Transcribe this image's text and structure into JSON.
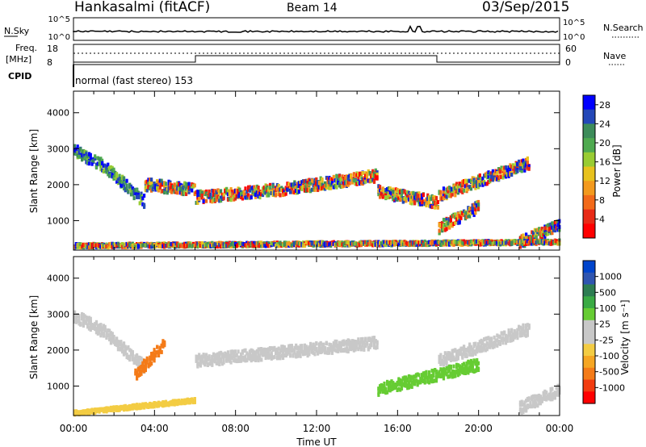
{
  "header": {
    "station": "Hankasalmi (fitACF)",
    "beam": "Beam 14",
    "date": "03/Sep/2015"
  },
  "noise_panel": {
    "left_label": "N.Sky",
    "left_ticks": [
      "10^5",
      "10^0"
    ],
    "right_label": "N.Search",
    "right_ticks": [
      "10^5",
      "10^0"
    ]
  },
  "freq_panel": {
    "left_label_line1": "Freq.",
    "left_label_line2": "[MHz]",
    "left_ticks": [
      "18",
      "8"
    ],
    "right_label": "Nave",
    "right_ticks": [
      "60",
      "0"
    ]
  },
  "cpid_panel": {
    "label": "CPID",
    "mode_text": "normal (fast stereo) 153"
  },
  "colors": {
    "power_scale": [
      "#0000ff",
      "#2448b8",
      "#3d8c5a",
      "#4faa50",
      "#99cc33",
      "#e8c21e",
      "#f39a1e",
      "#f26a1a",
      "#e82a16",
      "#ff0000"
    ],
    "velocity_scale": [
      "#ff0000",
      "#f23c10",
      "#f47b18",
      "#f5a623",
      "#f3cc43",
      "#c8c8c8",
      "#c8c8c8",
      "#66cc33",
      "#3aaa44",
      "#2d7d52",
      "#2f55b0",
      "#0044cc"
    ],
    "ground_scatter": "#c8c8c8"
  },
  "chart_data": [
    {
      "type": "heatmap",
      "name": "power",
      "xlabel": "",
      "ylabel": "Slant Range [km]",
      "xlim_hours": [
        0,
        24
      ],
      "ylim_km": [
        180,
        4600
      ],
      "y_ticks": [
        "1000",
        "2000",
        "3000",
        "4000"
      ],
      "colorbar": {
        "label": "Power [dB]",
        "range": [
          0,
          30
        ],
        "ticks": [
          "4",
          "8",
          "12",
          "16",
          "20",
          "24",
          "28"
        ]
      },
      "scatter_bands": [
        {
          "t_start": 0.0,
          "t_end": 1.5,
          "range_start": 2950,
          "range_end": 2500
        },
        {
          "t_start": 1.5,
          "t_end": 3.5,
          "range_start": 2500,
          "range_end": 1500
        },
        {
          "t_start": 3.5,
          "t_end": 6.0,
          "range_start": 2000,
          "range_end": 1850
        },
        {
          "t_start": 6.0,
          "t_end": 10.0,
          "range_start": 1650,
          "range_end": 1850
        },
        {
          "t_start": 10.0,
          "t_end": 15.0,
          "range_start": 1850,
          "range_end": 2250
        },
        {
          "t_start": 15.0,
          "t_end": 18.0,
          "range_start": 1800,
          "range_end": 1500
        },
        {
          "t_start": 18.0,
          "t_end": 22.5,
          "range_start": 1700,
          "range_end": 2600
        },
        {
          "t_start": 18.0,
          "t_end": 20.0,
          "range_start": 800,
          "range_end": 1400
        },
        {
          "t_start": 22.0,
          "t_end": 24.0,
          "range_start": 400,
          "range_end": 900
        },
        {
          "t_start": 0.0,
          "t_end": 24.0,
          "range_start": 300,
          "range_end": 400
        }
      ]
    },
    {
      "type": "heatmap",
      "name": "velocity",
      "xlabel": "Time UT",
      "ylabel": "Slant Range [km]",
      "xlim_hours": [
        0,
        24
      ],
      "x_ticks": [
        "00:00",
        "04:00",
        "08:00",
        "12:00",
        "16:00",
        "20:00",
        "00:00"
      ],
      "ylim_km": [
        180,
        4600
      ],
      "y_ticks": [
        "1000",
        "2000",
        "3000",
        "4000"
      ],
      "colorbar": {
        "label": "Velocity [m s⁻¹]",
        "ticks": [
          "1000",
          "500",
          "100",
          "25",
          "-25",
          "-100",
          "-500",
          "-1000"
        ]
      },
      "scatter_bands": [
        {
          "t_start": 0.0,
          "t_end": 1.5,
          "range_start": 2950,
          "range_end": 2500,
          "class": "ground"
        },
        {
          "t_start": 1.5,
          "t_end": 3.5,
          "range_start": 2500,
          "range_end": 1500,
          "class": "ground"
        },
        {
          "t_start": 3.0,
          "t_end": 4.5,
          "range_start": 1300,
          "range_end": 2200,
          "class": "away_-500"
        },
        {
          "t_start": 6.0,
          "t_end": 15.0,
          "range_start": 1700,
          "range_end": 2200,
          "class": "ground"
        },
        {
          "t_start": 15.0,
          "t_end": 20.0,
          "range_start": 900,
          "range_end": 1600,
          "class": "toward_100"
        },
        {
          "t_start": 18.0,
          "t_end": 22.5,
          "range_start": 1700,
          "range_end": 2600,
          "class": "ground"
        },
        {
          "t_start": 22.0,
          "t_end": 24.0,
          "range_start": 400,
          "range_end": 900,
          "class": "ground"
        },
        {
          "t_start": 0.0,
          "t_end": 6.0,
          "range_start": 250,
          "range_end": 600,
          "class": "low_-25"
        }
      ]
    }
  ]
}
